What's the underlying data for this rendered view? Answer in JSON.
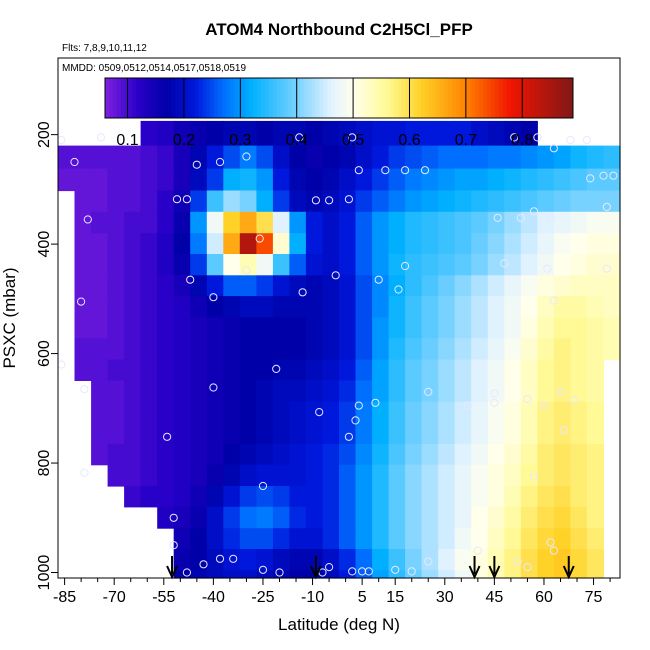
{
  "chart_data": {
    "type": "heatmap",
    "title": "ATOM4 Northbound C2H5Cl_PFP",
    "flights_note": "Flts: 7,8,9,10,11,12",
    "dates_note": "MMDD: 0509,0512,0514,0517,0518,0519",
    "xlabel": "Latitude (deg N)",
    "ylabel": "PSXC (mbar)",
    "xlim": [
      -87,
      83
    ],
    "ylim": [
      1010,
      60
    ],
    "x_ticks": [
      -85,
      -70,
      -55,
      -40,
      -25,
      -10,
      5,
      15,
      30,
      45,
      60,
      75
    ],
    "y_ticks": [
      200,
      400,
      600,
      800,
      1000
    ],
    "colorbar": {
      "min": 0.06,
      "max": 0.89,
      "ticks": [
        0.1,
        0.2,
        0.3,
        0.4,
        0.5,
        0.6,
        0.7,
        0.8
      ]
    },
    "grid": {
      "lat_edges": [
        -87,
        -82,
        -77,
        -72,
        -67,
        -62,
        -57,
        -52,
        -47,
        -42,
        -37,
        -32,
        -27,
        -22,
        -17,
        -12,
        -7,
        -2,
        3,
        8,
        13,
        18,
        23,
        28,
        33,
        38,
        43,
        48,
        53,
        58,
        63,
        68,
        73,
        78,
        83
      ],
      "p_edges": [
        175,
        220,
        262,
        302,
        341,
        380,
        418,
        457,
        495,
        534,
        572,
        611,
        649,
        688,
        726,
        765,
        803,
        842,
        880,
        919,
        957,
        996,
        1010
      ],
      "values": [
        [
          null,
          null,
          null,
          null,
          null,
          0.12,
          0.13,
          0.15,
          0.16,
          0.17,
          0.18,
          0.18,
          0.17,
          0.18,
          0.18,
          0.17,
          0.18,
          0.19,
          0.2,
          0.21,
          0.21,
          0.22,
          0.22,
          0.22,
          0.22,
          0.2,
          0.19,
          0.18,
          0.17,
          null,
          null,
          null,
          null,
          null
        ],
        [
          0.09,
          0.09,
          0.09,
          0.09,
          0.09,
          0.1,
          0.11,
          0.14,
          0.18,
          0.22,
          0.25,
          0.28,
          0.25,
          0.2,
          0.17,
          0.16,
          0.17,
          0.18,
          0.2,
          0.22,
          0.24,
          0.25,
          0.26,
          0.27,
          0.27,
          0.27,
          0.28,
          0.28,
          0.29,
          0.3,
          0.31,
          0.33,
          0.34,
          0.35
        ],
        [
          0.08,
          0.08,
          0.08,
          0.09,
          0.09,
          0.1,
          0.11,
          0.14,
          0.19,
          0.24,
          0.32,
          0.33,
          0.3,
          0.22,
          0.18,
          0.17,
          0.18,
          0.2,
          0.22,
          0.24,
          0.26,
          0.28,
          0.29,
          0.3,
          0.31,
          0.31,
          0.32,
          0.33,
          0.34,
          0.35,
          0.36,
          0.37,
          0.38,
          0.38
        ],
        [
          null,
          0.08,
          0.08,
          0.09,
          0.09,
          0.1,
          0.12,
          0.15,
          0.24,
          0.36,
          0.42,
          0.4,
          0.32,
          0.24,
          0.19,
          0.18,
          0.19,
          0.21,
          0.24,
          0.26,
          0.28,
          0.3,
          0.31,
          0.32,
          0.33,
          0.34,
          0.35,
          0.36,
          0.37,
          0.38,
          0.39,
          0.4,
          0.4,
          0.4
        ],
        [
          null,
          0.08,
          0.09,
          0.09,
          0.1,
          0.1,
          0.12,
          0.16,
          0.3,
          0.48,
          0.62,
          0.66,
          0.6,
          0.46,
          0.3,
          0.22,
          0.2,
          0.22,
          0.26,
          0.3,
          0.32,
          0.34,
          0.35,
          0.36,
          0.37,
          0.38,
          0.4,
          0.42,
          0.44,
          0.46,
          0.47,
          0.48,
          0.49,
          0.49
        ],
        [
          null,
          0.08,
          0.08,
          0.09,
          0.1,
          0.11,
          0.13,
          0.17,
          0.28,
          0.45,
          0.66,
          0.84,
          0.74,
          0.52,
          0.32,
          0.22,
          0.2,
          0.22,
          0.26,
          0.3,
          0.32,
          0.34,
          0.35,
          0.36,
          0.37,
          0.39,
          0.41,
          0.43,
          0.45,
          0.47,
          0.49,
          0.5,
          0.51,
          0.51
        ],
        [
          null,
          0.08,
          0.08,
          0.09,
          0.1,
          0.11,
          0.13,
          0.16,
          0.24,
          0.38,
          0.5,
          0.54,
          0.48,
          0.36,
          0.26,
          0.21,
          0.2,
          0.22,
          0.26,
          0.3,
          0.33,
          0.35,
          0.36,
          0.37,
          0.38,
          0.4,
          0.42,
          0.44,
          0.46,
          0.48,
          0.5,
          0.51,
          0.52,
          0.52
        ],
        [
          null,
          0.08,
          0.08,
          0.09,
          0.1,
          0.11,
          0.12,
          0.14,
          0.18,
          0.22,
          0.26,
          0.26,
          0.24,
          0.21,
          0.19,
          0.18,
          0.19,
          0.21,
          0.25,
          0.29,
          0.32,
          0.35,
          0.37,
          0.39,
          0.41,
          0.43,
          0.45,
          0.47,
          0.49,
          0.51,
          0.52,
          0.53,
          0.53,
          0.53
        ],
        [
          null,
          0.08,
          0.08,
          0.09,
          0.1,
          0.11,
          0.12,
          0.13,
          0.15,
          0.17,
          0.18,
          0.19,
          0.19,
          0.18,
          0.18,
          0.18,
          0.19,
          0.21,
          0.25,
          0.29,
          0.33,
          0.36,
          0.38,
          0.4,
          0.42,
          0.44,
          0.46,
          0.48,
          0.5,
          0.53,
          0.55,
          0.55,
          0.54,
          0.53
        ],
        [
          null,
          0.08,
          0.08,
          0.09,
          0.1,
          0.11,
          0.12,
          0.13,
          0.14,
          0.15,
          0.16,
          0.17,
          0.17,
          0.17,
          0.17,
          0.18,
          0.19,
          0.21,
          0.25,
          0.3,
          0.33,
          0.36,
          0.38,
          0.4,
          0.42,
          0.44,
          0.46,
          0.48,
          0.51,
          0.54,
          0.56,
          0.56,
          0.55,
          0.54
        ],
        [
          null,
          0.09,
          0.09,
          0.09,
          0.1,
          0.11,
          0.12,
          0.13,
          0.14,
          0.15,
          0.16,
          0.17,
          0.17,
          0.17,
          0.17,
          0.18,
          0.19,
          0.21,
          0.25,
          0.3,
          0.34,
          0.37,
          0.39,
          0.41,
          0.43,
          0.45,
          0.47,
          0.49,
          0.52,
          0.55,
          0.57,
          0.56,
          0.55,
          0.54
        ],
        [
          null,
          0.09,
          0.09,
          0.1,
          0.1,
          0.11,
          0.12,
          0.13,
          0.14,
          0.15,
          0.16,
          0.17,
          0.17,
          0.18,
          0.18,
          0.19,
          0.2,
          0.22,
          0.26,
          0.31,
          0.35,
          0.38,
          0.4,
          0.42,
          0.44,
          0.46,
          0.48,
          0.5,
          0.53,
          0.56,
          0.57,
          0.56,
          0.55,
          null
        ],
        [
          null,
          null,
          0.09,
          0.09,
          0.1,
          0.11,
          0.12,
          0.13,
          0.14,
          0.15,
          0.16,
          0.17,
          0.18,
          0.19,
          0.19,
          0.2,
          0.21,
          0.23,
          0.27,
          0.31,
          0.35,
          0.38,
          0.4,
          0.42,
          0.44,
          0.46,
          0.48,
          0.5,
          0.53,
          0.56,
          0.57,
          0.56,
          0.55,
          null
        ],
        [
          null,
          null,
          0.09,
          0.09,
          0.1,
          0.11,
          0.12,
          0.13,
          0.14,
          0.15,
          0.16,
          0.17,
          0.18,
          0.19,
          0.2,
          0.21,
          0.22,
          0.24,
          0.28,
          0.32,
          0.36,
          0.39,
          0.41,
          0.43,
          0.45,
          0.47,
          0.49,
          0.51,
          0.54,
          0.57,
          0.58,
          0.57,
          0.56,
          null
        ],
        [
          null,
          null,
          0.09,
          0.09,
          0.1,
          0.11,
          0.12,
          0.13,
          0.14,
          0.15,
          0.16,
          0.17,
          0.18,
          0.19,
          0.2,
          0.21,
          0.22,
          0.24,
          0.28,
          0.32,
          0.36,
          0.39,
          0.41,
          0.43,
          0.45,
          0.47,
          0.49,
          0.51,
          0.54,
          0.57,
          0.58,
          0.57,
          0.56,
          null
        ],
        [
          null,
          null,
          0.09,
          0.1,
          0.1,
          0.11,
          0.12,
          0.13,
          0.14,
          0.15,
          0.17,
          0.18,
          0.19,
          0.2,
          0.21,
          0.22,
          0.23,
          0.25,
          0.29,
          0.33,
          0.37,
          0.4,
          0.42,
          0.44,
          0.46,
          0.48,
          0.5,
          0.52,
          0.55,
          0.58,
          0.59,
          0.58,
          0.57,
          null
        ],
        [
          null,
          null,
          null,
          0.1,
          0.1,
          0.11,
          0.12,
          0.13,
          0.14,
          0.16,
          0.18,
          0.2,
          0.21,
          0.21,
          0.21,
          0.22,
          0.23,
          0.26,
          0.3,
          0.34,
          0.38,
          0.41,
          0.43,
          0.45,
          0.47,
          0.49,
          0.51,
          0.53,
          0.56,
          0.58,
          0.59,
          0.58,
          0.57,
          null
        ],
        [
          null,
          null,
          null,
          null,
          0.11,
          0.12,
          0.12,
          0.13,
          0.15,
          0.18,
          0.21,
          0.24,
          0.25,
          0.24,
          0.22,
          0.22,
          0.23,
          0.26,
          0.3,
          0.34,
          0.38,
          0.41,
          0.43,
          0.45,
          0.47,
          0.49,
          0.51,
          0.54,
          0.57,
          0.59,
          0.6,
          0.58,
          0.57,
          null
        ],
        [
          null,
          null,
          null,
          null,
          null,
          null,
          0.13,
          0.14,
          0.16,
          0.2,
          0.24,
          0.27,
          0.28,
          0.26,
          0.23,
          0.22,
          0.23,
          0.26,
          0.3,
          0.34,
          0.38,
          0.41,
          0.43,
          0.45,
          0.47,
          0.5,
          0.52,
          0.55,
          0.58,
          0.6,
          0.61,
          0.59,
          0.57,
          null
        ],
        [
          null,
          null,
          null,
          null,
          null,
          null,
          null,
          0.15,
          0.17,
          0.2,
          0.23,
          0.25,
          0.25,
          0.23,
          0.21,
          0.21,
          0.23,
          0.26,
          0.3,
          0.34,
          0.38,
          0.41,
          0.43,
          0.45,
          0.48,
          0.5,
          0.53,
          0.56,
          0.59,
          0.61,
          0.62,
          0.6,
          0.58,
          null
        ],
        [
          null,
          null,
          null,
          null,
          null,
          null,
          null,
          0.16,
          0.17,
          0.19,
          0.21,
          0.22,
          0.21,
          0.19,
          0.18,
          0.18,
          0.2,
          0.23,
          0.27,
          0.32,
          0.36,
          0.4,
          0.43,
          0.46,
          0.49,
          0.51,
          0.54,
          0.57,
          0.6,
          0.62,
          0.63,
          0.61,
          0.59,
          null
        ],
        [
          null,
          null,
          null,
          null,
          null,
          null,
          null,
          0.17,
          0.18,
          0.19,
          0.2,
          0.2,
          0.19,
          0.18,
          0.17,
          0.17,
          0.19,
          0.22,
          0.26,
          0.31,
          0.35,
          0.39,
          0.42,
          0.45,
          0.48,
          0.51,
          0.54,
          0.57,
          0.6,
          0.62,
          0.63,
          0.61,
          0.59,
          null
        ]
      ]
    },
    "samples": [
      {
        "lat": -86,
        "p": 210
      },
      {
        "lat": -82,
        "p": 250
      },
      {
        "lat": -74,
        "p": 205
      },
      {
        "lat": -45,
        "p": 255
      },
      {
        "lat": -38,
        "p": 250
      },
      {
        "lat": -30,
        "p": 240
      },
      {
        "lat": -14,
        "p": 205
      },
      {
        "lat": 2,
        "p": 205
      },
      {
        "lat": 51,
        "p": 205
      },
      {
        "lat": 58,
        "p": 205
      },
      {
        "lat": 63,
        "p": 225
      },
      {
        "lat": 68,
        "p": 210
      },
      {
        "lat": 73,
        "p": 210
      },
      {
        "lat": 4,
        "p": 265
      },
      {
        "lat": 12,
        "p": 265
      },
      {
        "lat": 18,
        "p": 265
      },
      {
        "lat": 24,
        "p": 265
      },
      {
        "lat": 74,
        "p": 280
      },
      {
        "lat": 78,
        "p": 275
      },
      {
        "lat": 81,
        "p": 275
      },
      {
        "lat": -51,
        "p": 318
      },
      {
        "lat": -48,
        "p": 318
      },
      {
        "lat": -9,
        "p": 320
      },
      {
        "lat": -5,
        "p": 320
      },
      {
        "lat": 1,
        "p": 318
      },
      {
        "lat": 46,
        "p": 352
      },
      {
        "lat": 53,
        "p": 352
      },
      {
        "lat": 57,
        "p": 340
      },
      {
        "lat": 62,
        "p": 352
      },
      {
        "lat": 79,
        "p": 332
      },
      {
        "lat": -78,
        "p": 355
      },
      {
        "lat": -26,
        "p": 390
      },
      {
        "lat": -30,
        "p": 448
      },
      {
        "lat": -47,
        "p": 465
      },
      {
        "lat": -13,
        "p": 488
      },
      {
        "lat": -3,
        "p": 457
      },
      {
        "lat": 10,
        "p": 465
      },
      {
        "lat": 16,
        "p": 483
      },
      {
        "lat": 18,
        "p": 440
      },
      {
        "lat": 48,
        "p": 435
      },
      {
        "lat": 61,
        "p": 445
      },
      {
        "lat": 79,
        "p": 445
      },
      {
        "lat": -80,
        "p": 505
      },
      {
        "lat": -40,
        "p": 497
      },
      {
        "lat": 63,
        "p": 503
      },
      {
        "lat": -21,
        "p": 628
      },
      {
        "lat": -40,
        "p": 662
      },
      {
        "lat": -86,
        "p": 620
      },
      {
        "lat": -79,
        "p": 665
      },
      {
        "lat": -8,
        "p": 707
      },
      {
        "lat": 9,
        "p": 690
      },
      {
        "lat": 4,
        "p": 695
      },
      {
        "lat": 25,
        "p": 670
      },
      {
        "lat": 37,
        "p": 695
      },
      {
        "lat": 45,
        "p": 673
      },
      {
        "lat": 45,
        "p": 690
      },
      {
        "lat": 55,
        "p": 683
      },
      {
        "lat": 60,
        "p": 695
      },
      {
        "lat": 65,
        "p": 670
      },
      {
        "lat": 69,
        "p": 685
      },
      {
        "lat": -54,
        "p": 752
      },
      {
        "lat": 1,
        "p": 752
      },
      {
        "lat": 3,
        "p": 722
      },
      {
        "lat": 66,
        "p": 740
      },
      {
        "lat": -79,
        "p": 818
      },
      {
        "lat": -25,
        "p": 842
      },
      {
        "lat": 57,
        "p": 825
      },
      {
        "lat": -52,
        "p": 900
      },
      {
        "lat": -52,
        "p": 950
      },
      {
        "lat": -48,
        "p": 1000
      },
      {
        "lat": -43,
        "p": 985
      },
      {
        "lat": -38,
        "p": 975
      },
      {
        "lat": -34,
        "p": 975
      },
      {
        "lat": -25,
        "p": 995
      },
      {
        "lat": -20,
        "p": 1000
      },
      {
        "lat": -7,
        "p": 1000
      },
      {
        "lat": -5,
        "p": 990
      },
      {
        "lat": 2,
        "p": 998
      },
      {
        "lat": 5,
        "p": 998
      },
      {
        "lat": 7,
        "p": 998
      },
      {
        "lat": 15,
        "p": 995
      },
      {
        "lat": 20,
        "p": 998
      },
      {
        "lat": 25,
        "p": 980
      },
      {
        "lat": 40,
        "p": 960
      },
      {
        "lat": 52,
        "p": 980
      },
      {
        "lat": 55,
        "p": 990
      },
      {
        "lat": 62,
        "p": 945
      },
      {
        "lat": 63,
        "p": 960
      }
    ],
    "arrows_lat": [
      -52.5,
      -9,
      39,
      45,
      67.5
    ]
  }
}
